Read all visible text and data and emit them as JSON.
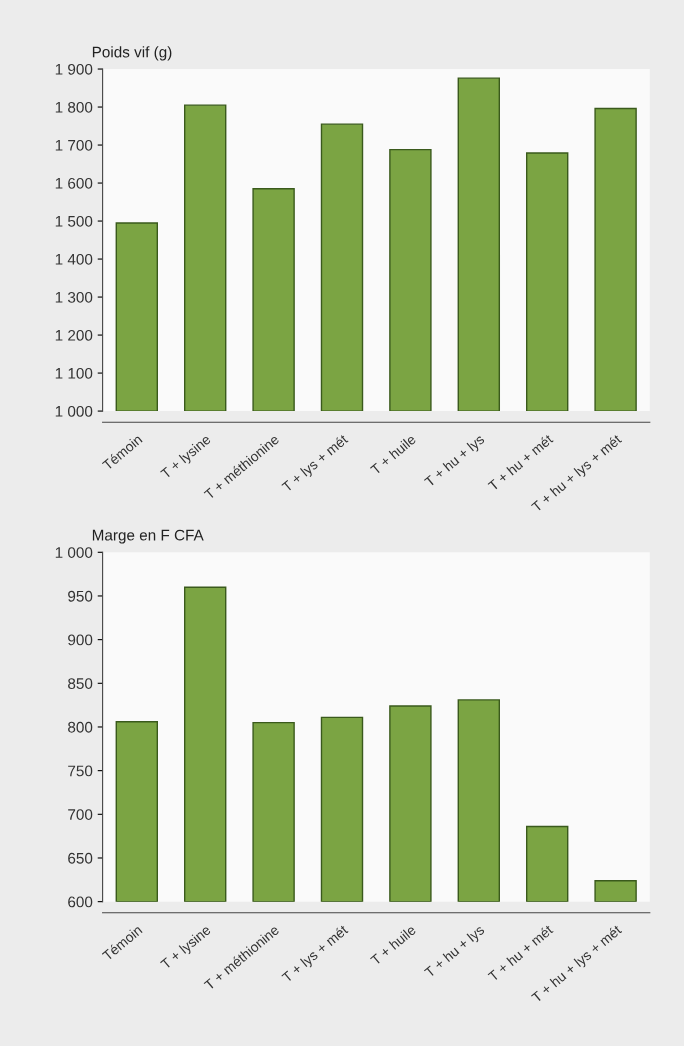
{
  "chart_data": [
    {
      "type": "bar",
      "ylabel": "Poids vif (g)",
      "categories": [
        "Témoin",
        "T + lysine",
        "T + méthionine",
        "T + lys + mét",
        "T + huile",
        "T + hu + lys",
        "T + hu + mét",
        "T + hu + lys + mét"
      ],
      "values": [
        1495,
        1805,
        1585,
        1755,
        1688,
        1876,
        1679,
        1796
      ],
      "color": "#7ba443",
      "ylim": [
        1000,
        1900
      ],
      "yticks": [
        {
          "value": 1000,
          "label": "1 000"
        },
        {
          "value": 1100,
          "label": "1 100"
        },
        {
          "value": 1200,
          "label": "1 200"
        },
        {
          "value": 1300,
          "label": "1 300"
        },
        {
          "value": 1400,
          "label": "1 400"
        },
        {
          "value": 1500,
          "label": "1 500"
        },
        {
          "value": 1600,
          "label": "1 600"
        },
        {
          "value": 1700,
          "label": "1 700"
        },
        {
          "value": 1800,
          "label": "1 800"
        },
        {
          "value": 1900,
          "label": "1 900"
        }
      ]
    },
    {
      "type": "bar",
      "ylabel": "Marge en F CFA",
      "categories": [
        "Témoin",
        "T + lysine",
        "T + méthionine",
        "T + lys + mét",
        "T + huile",
        "T + hu + lys",
        "T + hu + mét",
        "T + hu + lys + mét"
      ],
      "values": [
        806,
        960,
        805,
        811,
        824,
        831,
        686,
        624
      ],
      "color": "#7ba443",
      "ylim": [
        600,
        1000
      ],
      "yticks": [
        600,
        650,
        700,
        750,
        800,
        850,
        900,
        950,
        {
          "value": 1000,
          "label": "1 000"
        }
      ]
    }
  ]
}
